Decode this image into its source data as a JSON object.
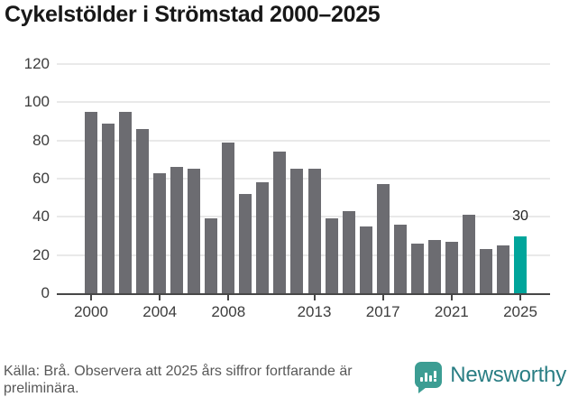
{
  "title": "Cykelstölder i Strömstad 2000–2025",
  "chart_data": {
    "type": "bar",
    "x": [
      2000,
      2001,
      2002,
      2003,
      2004,
      2005,
      2006,
      2007,
      2008,
      2009,
      2010,
      2011,
      2012,
      2013,
      2014,
      2015,
      2016,
      2017,
      2018,
      2019,
      2020,
      2021,
      2022,
      2023,
      2024,
      2025
    ],
    "values": [
      95,
      89,
      95,
      86,
      63,
      66,
      65,
      39,
      79,
      52,
      58,
      74,
      65,
      65,
      39,
      43,
      35,
      57,
      36,
      26,
      28,
      27,
      41,
      23,
      25,
      30
    ],
    "title": "Cykelstölder i Strömstad 2000–2025",
    "xlabel": "",
    "ylabel": "",
    "ylim": [
      0,
      120
    ],
    "y_ticks": [
      0,
      20,
      40,
      60,
      80,
      100,
      120
    ],
    "x_tick_years": [
      2000,
      2004,
      2008,
      2013,
      2017,
      2021,
      2025
    ],
    "grid": "horizontal",
    "legend": "none",
    "bar_color": "#6c6c71",
    "highlight_year": 2025,
    "highlight_color": "#00a59b",
    "highlight_value_label": "30"
  },
  "footer": {
    "source_note": "Källa: Brå. Observera att 2025 års siffror fortfarande är preliminära."
  },
  "logo": {
    "brand": "Newsworthy",
    "icon": "bar-chart-speech-bubble-icon",
    "icon_color": "#3c9d93",
    "text_color": "#2a7e84"
  }
}
